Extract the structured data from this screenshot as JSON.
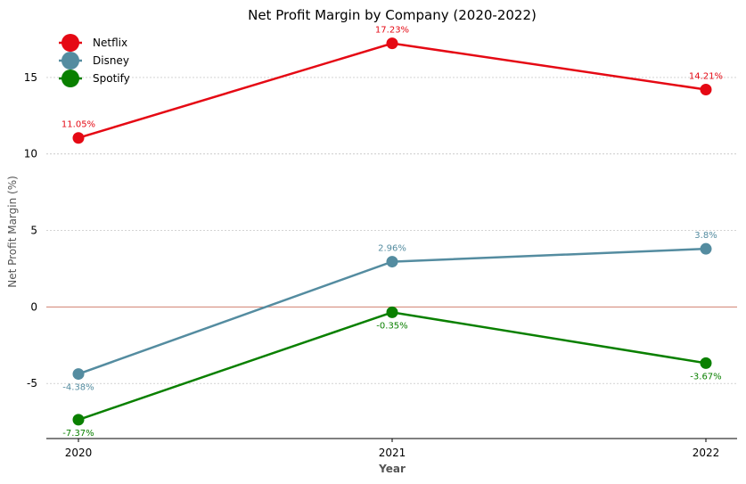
{
  "chart_data": {
    "type": "line",
    "title": "Net Profit Margin by Company (2020-2022)",
    "xlabel": "Year",
    "ylabel": "Net Profit Margin (%)",
    "categories": [
      "2020",
      "2021",
      "2022"
    ],
    "ylim": [
      -8.6,
      18.2
    ],
    "yticks": [
      -5,
      0,
      5,
      10,
      15
    ],
    "ytick_labels": [
      "-5",
      "0",
      "5",
      "10",
      "15"
    ],
    "grid": "horizontal dashed",
    "zero_line_color": "#d08070",
    "legend_position": "top-left",
    "series": [
      {
        "name": "Netflix",
        "color": "#e50914",
        "values": [
          11.05,
          17.23,
          14.21
        ],
        "labels": [
          "11.05%",
          "17.23%",
          "14.21%"
        ],
        "label_position": "above"
      },
      {
        "name": "Disney",
        "color": "#548ca0",
        "values": [
          -4.38,
          2.96,
          3.8
        ],
        "labels": [
          "-4.38%",
          "2.96%",
          "3.8%"
        ],
        "label_position": "mixed"
      },
      {
        "name": "Spotify",
        "color": "#0a8000",
        "values": [
          -7.37,
          -0.35,
          -3.67
        ],
        "labels": [
          "-7.37%",
          "-0.35%",
          "-3.67%"
        ],
        "label_position": "below"
      }
    ]
  }
}
